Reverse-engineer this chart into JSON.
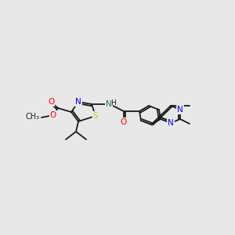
{
  "background_color": "#e8e8e8",
  "bond_color": "#1a1a1a",
  "colors": {
    "N": "#0000ff",
    "O": "#ff0000",
    "S": "#cccc00",
    "C": "#1a1a1a",
    "H": "#1a1a1a",
    "NH": "#1a7070"
  },
  "font_size": 7.5
}
